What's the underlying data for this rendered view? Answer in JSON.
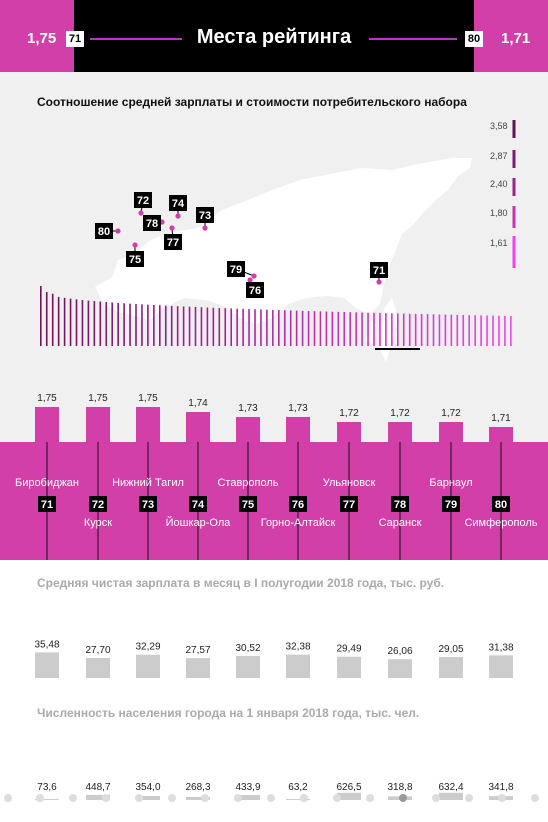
{
  "header": {
    "title": "Места рейтинга",
    "left_value": "1,75",
    "left_rank": "71",
    "right_value": "1,71",
    "right_rank": "80"
  },
  "ratio_section": {
    "title": "Соотношение средней зарплаты и стоимости потребительского набора",
    "scale": [
      "3,58",
      "2,87",
      "2,40",
      "1,80",
      "1,61"
    ],
    "map_markers": [
      "80",
      "72",
      "78",
      "74",
      "77",
      "73",
      "75",
      "79",
      "76",
      "71"
    ]
  },
  "cities": [
    "Биробиджан",
    "Курск",
    "Нижний Тагил",
    "Йошкар-Ола",
    "Ставрополь",
    "Горно-Алтайск",
    "Ульяновск",
    "Саранск",
    "Барнаул",
    "Симферополь"
  ],
  "ranks": [
    "71",
    "72",
    "73",
    "74",
    "75",
    "76",
    "77",
    "78",
    "79",
    "80"
  ],
  "ratio_labels": [
    "1,75",
    "1,75",
    "1,75",
    "1,74",
    "1,73",
    "1,73",
    "1,72",
    "1,72",
    "1,72",
    "1,71"
  ],
  "salary_title": "Средняя чистая зарплата в месяц в I полугодии 2018 года, тыс. руб.",
  "salary_labels": [
    "35,48",
    "27,70",
    "32,29",
    "27,57",
    "30,52",
    "32,38",
    "29,49",
    "26,06",
    "29,05",
    "31,38"
  ],
  "population_title": "Численность населения города на 1 января 2018 года, тыс. чел.",
  "population_labels": [
    "73,6",
    "448,7",
    "354,0",
    "268,3",
    "433,9",
    "63,2",
    "626,5",
    "318,8",
    "632,4",
    "341,8"
  ],
  "colors": {
    "magenta": "#d23fa9",
    "black": "#000000",
    "grey_bar": "#cccccc",
    "bg": "#f0f0f0"
  },
  "chart_data": [
    {
      "type": "bar",
      "title": "Соотношение средней зарплаты и стоимости потребительского набора",
      "categories": [
        "Биробиджан",
        "Курск",
        "Нижний Тагил",
        "Йошкар-Ола",
        "Ставрополь",
        "Горно-Алтайск",
        "Ульяновск",
        "Саранск",
        "Барнаул",
        "Симферополь"
      ],
      "values": [
        1.75,
        1.75,
        1.75,
        1.74,
        1.73,
        1.73,
        1.72,
        1.72,
        1.72,
        1.71
      ]
    },
    {
      "type": "bar",
      "title": "Средняя чистая зарплата в месяц в I полугодии 2018 года, тыс. руб.",
      "categories": [
        "Биробиджан",
        "Курск",
        "Нижний Тагил",
        "Йошкар-Ола",
        "Ставрополь",
        "Горно-Алтайск",
        "Ульяновск",
        "Саранск",
        "Барнаул",
        "Симферополь"
      ],
      "values": [
        35.48,
        27.7,
        32.29,
        27.57,
        30.52,
        32.38,
        29.49,
        26.06,
        29.05,
        31.38
      ]
    },
    {
      "type": "bar",
      "title": "Численность населения города на 1 января 2018 года, тыс. чел.",
      "categories": [
        "Биробиджан",
        "Курск",
        "Нижний Тагил",
        "Йошкар-Ола",
        "Ставрополь",
        "Горно-Алтайск",
        "Ульяновск",
        "Саранск",
        "Барнаул",
        "Симферополь"
      ],
      "values": [
        73.6,
        448.7,
        354.0,
        268.3,
        433.9,
        63.2,
        626.5,
        318.8,
        632.4,
        341.8
      ]
    }
  ]
}
